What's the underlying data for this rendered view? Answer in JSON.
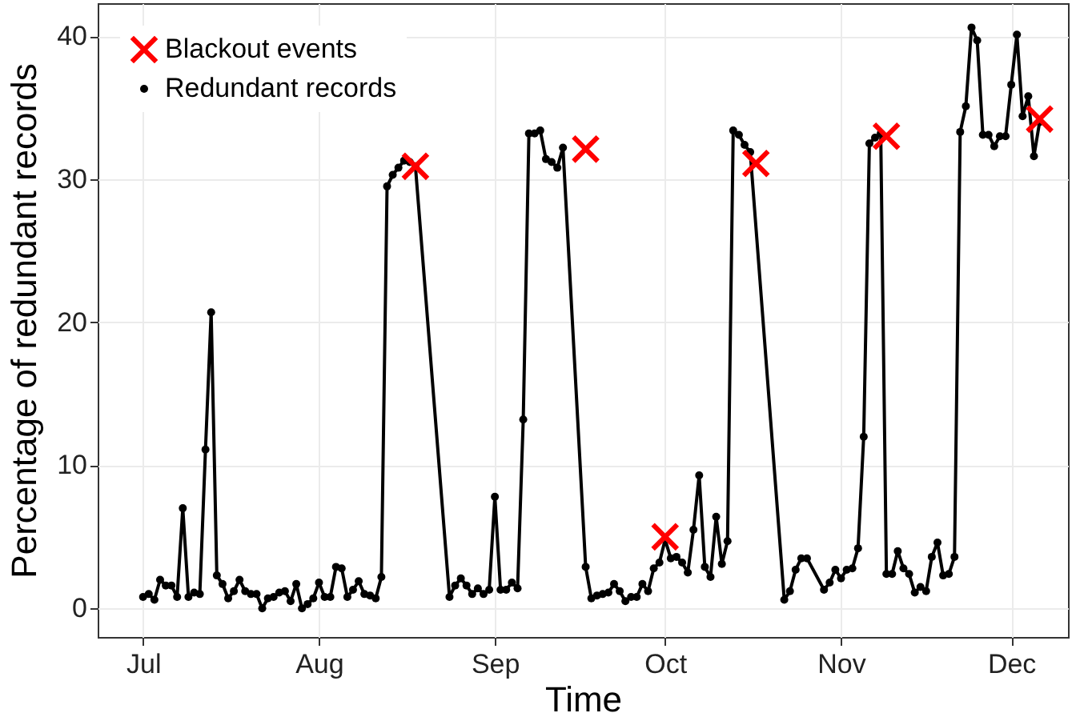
{
  "chart_data": {
    "type": "line",
    "xlabel": "Time",
    "ylabel": "Percentage of redundant records",
    "xlim": [
      "--06-23",
      "--12-11"
    ],
    "xticks": [
      {
        "value": "--07-01",
        "label": "Jul"
      },
      {
        "value": "--08-01",
        "label": "Aug"
      },
      {
        "value": "--09-01",
        "label": "Sep"
      },
      {
        "value": "--10-01",
        "label": "Oct"
      },
      {
        "value": "--11-01",
        "label": "Nov"
      },
      {
        "value": "--12-01",
        "label": "Dec"
      }
    ],
    "ylim": [
      -2,
      42.3
    ],
    "yticks": [
      0,
      10,
      20,
      30,
      40
    ],
    "grid": true,
    "legend": "top left",
    "line_style": "solid",
    "series": [
      {
        "name": "Blackout events",
        "type": "scatter",
        "marker": "cross",
        "color": "#ff0000",
        "x": [
          "--08-18",
          "--09-17",
          "--10-01",
          "--10-17",
          "--11-09",
          "--12-06"
        ],
        "values": [
          30.9,
          32.1,
          5.0,
          31.1,
          33.0,
          34.2
        ]
      },
      {
        "name": "Redundant records",
        "type": "line",
        "marker": "circle",
        "color": "#000000",
        "x": [
          "--07-01",
          "--07-02",
          "--07-03",
          "--07-04",
          "--07-05",
          "--07-06",
          "--07-07",
          "--07-08",
          "--07-09",
          "--07-10",
          "--07-11",
          "--07-12",
          "--07-13",
          "--07-14",
          "--07-15",
          "--07-16",
          "--07-17",
          "--07-18",
          "--07-19",
          "--07-20",
          "--07-21",
          "--07-22",
          "--07-23",
          "--07-24",
          "--07-25",
          "--07-26",
          "--07-27",
          "--07-28",
          "--07-29",
          "--07-30",
          "--07-31",
          "--08-01",
          "--08-02",
          "--08-03",
          "--08-04",
          "--08-05",
          "--08-06",
          "--08-07",
          "--08-08",
          "--08-09",
          "--08-10",
          "--08-11",
          "--08-12",
          "--08-13",
          "--08-14",
          "--08-15",
          "--08-16",
          "--08-17",
          "--08-18",
          "--08-24",
          "--08-25",
          "--08-26",
          "--08-27",
          "--08-28",
          "--08-29",
          "--08-30",
          "--08-31",
          "--09-01",
          "--09-02",
          "--09-03",
          "--09-04",
          "--09-05",
          "--09-06",
          "--09-07",
          "--09-08",
          "--09-09",
          "--09-10",
          "--09-11",
          "--09-12",
          "--09-13",
          "--09-17",
          "--09-18",
          "--09-19",
          "--09-20",
          "--09-21",
          "--09-22",
          "--09-23",
          "--09-24",
          "--09-25",
          "--09-26",
          "--09-27",
          "--09-28",
          "--09-29",
          "--09-30",
          "--10-01",
          "--10-02",
          "--10-03",
          "--10-04",
          "--10-05",
          "--10-06",
          "--10-07",
          "--10-08",
          "--10-09",
          "--10-10",
          "--10-11",
          "--10-12",
          "--10-13",
          "--10-14",
          "--10-15",
          "--10-16",
          "--10-22",
          "--10-23",
          "--10-24",
          "--10-25",
          "--10-26",
          "--10-29",
          "--10-30",
          "--10-31",
          "--11-01",
          "--11-02",
          "--11-03",
          "--11-04",
          "--11-05",
          "--11-06",
          "--11-07",
          "--11-08",
          "--11-09",
          "--11-10",
          "--11-11",
          "--11-12",
          "--11-13",
          "--11-14",
          "--11-15",
          "--11-16",
          "--11-17",
          "--11-18",
          "--11-19",
          "--11-20",
          "--11-21",
          "--11-22",
          "--11-23",
          "--11-24",
          "--11-25",
          "--11-26",
          "--11-27",
          "--11-28",
          "--11-29",
          "--11-30",
          "--12-01",
          "--12-02",
          "--12-03",
          "--12-04",
          "--12-05",
          "--12-06"
        ],
        "values": [
          0.8,
          1.0,
          0.6,
          2.0,
          1.6,
          1.6,
          0.8,
          7.0,
          0.8,
          1.1,
          1.0,
          11.1,
          20.7,
          2.3,
          1.7,
          0.7,
          1.2,
          2.0,
          1.2,
          1.0,
          1.0,
          0.0,
          0.7,
          0.8,
          1.1,
          1.2,
          0.5,
          1.7,
          0.0,
          0.3,
          0.7,
          1.8,
          0.8,
          0.8,
          2.9,
          2.8,
          0.8,
          1.3,
          1.9,
          1.0,
          0.9,
          0.7,
          2.2,
          29.5,
          30.3,
          30.8,
          31.3,
          31.2,
          30.9,
          0.8,
          1.6,
          2.1,
          1.6,
          1.0,
          1.4,
          1.0,
          1.3,
          7.8,
          1.3,
          1.3,
          1.8,
          1.4,
          13.2,
          33.2,
          33.2,
          33.4,
          31.4,
          31.2,
          30.8,
          32.2,
          2.9,
          0.7,
          0.9,
          1.0,
          1.1,
          1.7,
          1.2,
          0.5,
          0.8,
          0.8,
          1.7,
          1.2,
          2.8,
          3.2,
          4.8,
          3.5,
          3.6,
          3.2,
          2.5,
          5.5,
          9.3,
          2.9,
          2.2,
          6.4,
          3.1,
          4.7,
          33.4,
          33.1,
          32.4,
          31.9,
          0.6,
          1.2,
          2.7,
          3.5,
          3.5,
          1.3,
          1.8,
          2.7,
          2.1,
          2.7,
          2.8,
          4.2,
          12.0,
          32.5,
          32.9,
          33.2,
          2.4,
          2.4,
          4.0,
          2.8,
          2.4,
          1.1,
          1.5,
          1.2,
          3.6,
          4.6,
          2.3,
          2.4,
          3.6,
          33.3,
          35.1,
          40.6,
          39.7,
          33.1,
          33.1,
          32.3,
          33.0,
          33.0,
          36.6,
          40.1,
          34.4,
          35.8,
          31.6,
          34.0
        ]
      }
    ]
  }
}
